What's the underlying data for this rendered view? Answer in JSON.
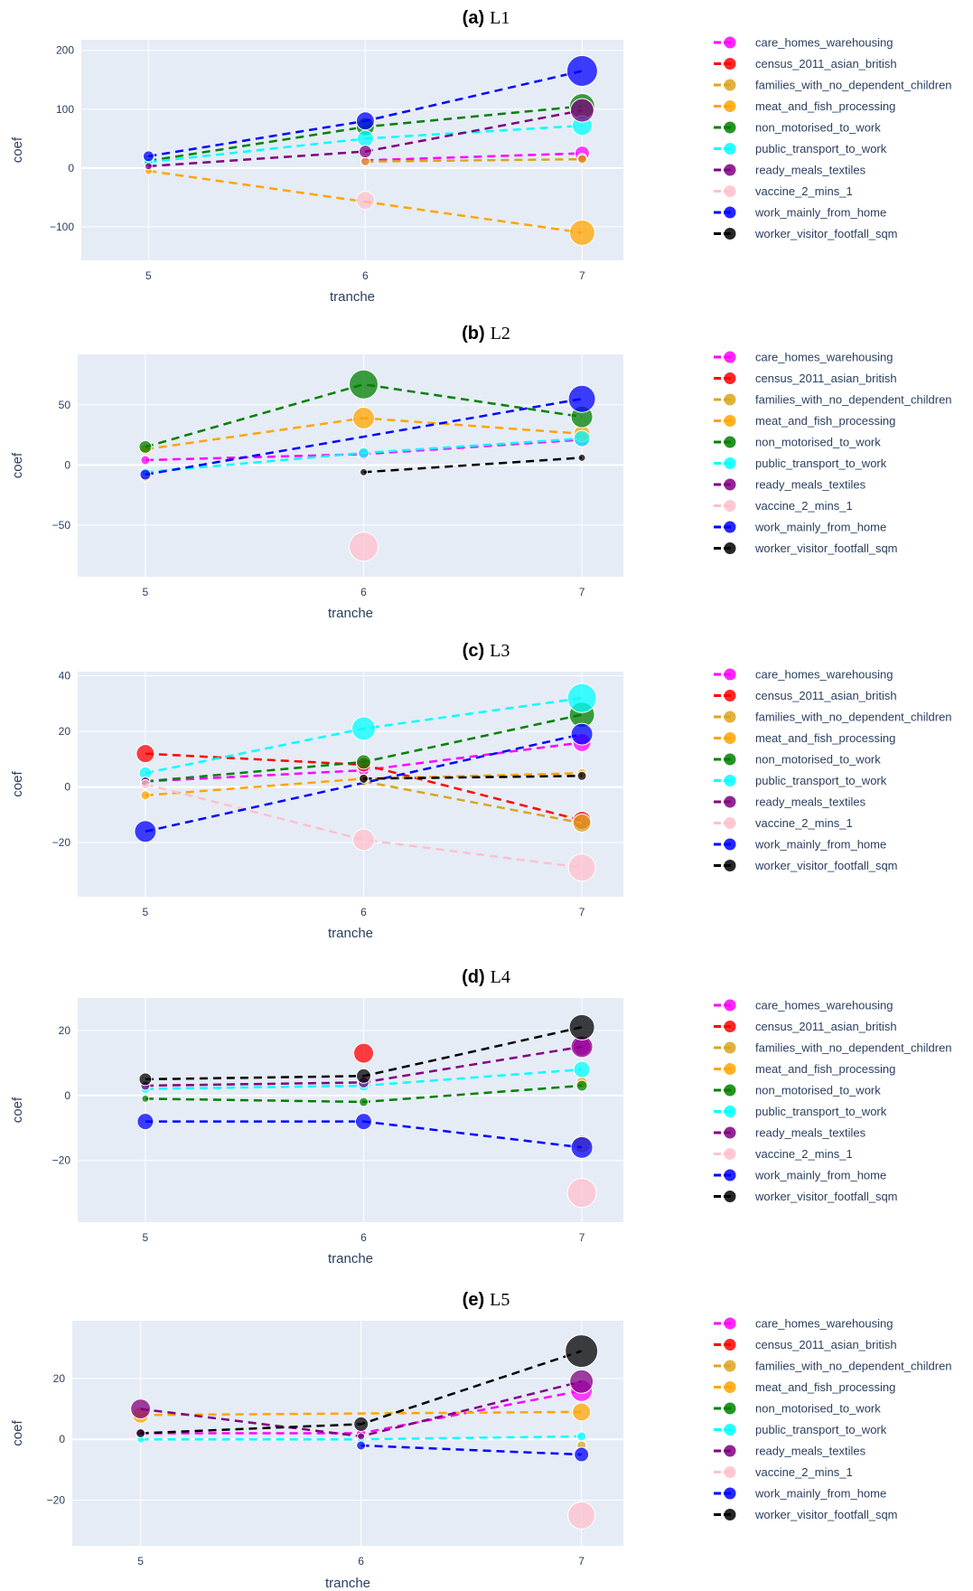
{
  "colors": {
    "plot_bg": "#e5ecf6",
    "grid": "#ffffff",
    "tick_text": "#2a3f5f"
  },
  "chart_data": [
    {
      "type": "scatter",
      "title_label": "(a)",
      "title_text": "L1",
      "xlabel": "tranche",
      "ylabel": "coef",
      "x_ticks": [
        5,
        6,
        7
      ],
      "y_ticks": [
        -100,
        0,
        100,
        200
      ],
      "xlim": [
        4.69,
        7.19
      ],
      "ylim": [
        -157,
        218
      ],
      "series": [
        {
          "name": "care_homes_warehousing",
          "color": "#ff00ff",
          "points": [
            {
              "x": 6,
              "y": 13,
              "size": 5
            },
            {
              "x": 7,
              "y": 25,
              "size": 8
            }
          ]
        },
        {
          "name": "census_2011_asian_british",
          "color": "#ff0000",
          "points": [
            {
              "x": 7,
              "y": 17,
              "size": 5
            }
          ]
        },
        {
          "name": "families_with_no_dependent_children",
          "color": "#daa520",
          "points": [
            {
              "x": 6,
              "y": 11,
              "size": 5
            },
            {
              "x": 7,
              "y": 15,
              "size": 5
            }
          ]
        },
        {
          "name": "meat_and_fish_processing",
          "color": "#ffa500",
          "points": [
            {
              "x": 5,
              "y": -5,
              "size": 4
            },
            {
              "x": 7,
              "y": -110,
              "size": 14
            }
          ]
        },
        {
          "name": "non_motorised_to_work",
          "color": "#008000",
          "points": [
            {
              "x": 5,
              "y": 12,
              "size": 6
            },
            {
              "x": 6,
              "y": 70,
              "size": 10
            },
            {
              "x": 7,
              "y": 105,
              "size": 14
            }
          ]
        },
        {
          "name": "public_transport_to_work",
          "color": "#00ffff",
          "points": [
            {
              "x": 5,
              "y": 10,
              "size": 5
            },
            {
              "x": 6,
              "y": 50,
              "size": 9
            },
            {
              "x": 7,
              "y": 72,
              "size": 11
            }
          ]
        },
        {
          "name": "ready_meals_textiles",
          "color": "#800080",
          "points": [
            {
              "x": 5,
              "y": 3,
              "size": 4
            },
            {
              "x": 6,
              "y": 28,
              "size": 7
            },
            {
              "x": 7,
              "y": 98,
              "size": 13
            }
          ]
        },
        {
          "name": "vaccine_2_mins_1",
          "color": "#ffc0cb",
          "points": [
            {
              "x": 6,
              "y": -55,
              "size": 10
            }
          ]
        },
        {
          "name": "work_mainly_from_home",
          "color": "#0000ff",
          "points": [
            {
              "x": 5,
              "y": 20,
              "size": 6
            },
            {
              "x": 6,
              "y": 80,
              "size": 10
            },
            {
              "x": 7,
              "y": 165,
              "size": 17
            }
          ]
        },
        {
          "name": "worker_visitor_footfall_sqm",
          "color": "#000000",
          "points": []
        }
      ]
    },
    {
      "type": "scatter",
      "title_label": "(b)",
      "title_text": "L2",
      "xlabel": "tranche",
      "ylabel": "coef",
      "x_ticks": [
        5,
        6,
        7
      ],
      "y_ticks": [
        -50,
        0,
        50
      ],
      "xlim": [
        4.69,
        7.19
      ],
      "ylim": [
        -93,
        92
      ],
      "series": [
        {
          "name": "care_homes_warehousing",
          "color": "#ff00ff",
          "points": [
            {
              "x": 5,
              "y": 4,
              "size": 5
            },
            {
              "x": 6,
              "y": 9,
              "size": 6
            },
            {
              "x": 7,
              "y": 21,
              "size": 8
            }
          ]
        },
        {
          "name": "census_2011_asian_british",
          "color": "#ff0000",
          "points": []
        },
        {
          "name": "families_with_no_dependent_children",
          "color": "#daa520",
          "points": [
            {
              "x": 5,
              "y": -10,
              "size": 5
            }
          ]
        },
        {
          "name": "meat_and_fish_processing",
          "color": "#ffa500",
          "points": [
            {
              "x": 5,
              "y": 13,
              "size": 6
            },
            {
              "x": 6,
              "y": 39,
              "size": 12
            },
            {
              "x": 7,
              "y": 26,
              "size": 9
            }
          ]
        },
        {
          "name": "non_motorised_to_work",
          "color": "#008000",
          "points": [
            {
              "x": 5,
              "y": 15,
              "size": 7
            },
            {
              "x": 6,
              "y": 67,
              "size": 16
            },
            {
              "x": 7,
              "y": 40,
              "size": 12
            }
          ]
        },
        {
          "name": "public_transport_to_work",
          "color": "#00ffff",
          "points": [
            {
              "x": 5,
              "y": -6,
              "size": 5
            },
            {
              "x": 6,
              "y": 10,
              "size": 6
            },
            {
              "x": 7,
              "y": 22,
              "size": 9
            }
          ]
        },
        {
          "name": "ready_meals_textiles",
          "color": "#800080",
          "points": []
        },
        {
          "name": "vaccine_2_mins_1",
          "color": "#ffc0cb",
          "points": [
            {
              "x": 6,
              "y": -68,
              "size": 16
            }
          ]
        },
        {
          "name": "work_mainly_from_home",
          "color": "#0000ff",
          "points": [
            {
              "x": 5,
              "y": -8,
              "size": 6
            },
            {
              "x": 7,
              "y": 55,
              "size": 15
            }
          ]
        },
        {
          "name": "worker_visitor_footfall_sqm",
          "color": "#000000",
          "points": [
            {
              "x": 6,
              "y": -6,
              "size": 4
            },
            {
              "x": 7,
              "y": 6,
              "size": 4
            }
          ]
        }
      ]
    },
    {
      "type": "scatter",
      "title_label": "(c)",
      "title_text": "L3",
      "xlabel": "tranche",
      "ylabel": "coef",
      "x_ticks": [
        5,
        6,
        7
      ],
      "y_ticks": [
        -20,
        0,
        20,
        40
      ],
      "xlim": [
        4.69,
        7.19
      ],
      "ylim": [
        -39.5,
        41.5
      ],
      "series": [
        {
          "name": "care_homes_warehousing",
          "color": "#ff00ff",
          "points": [
            {
              "x": 5,
              "y": 2,
              "size": 5
            },
            {
              "x": 6,
              "y": 6,
              "size": 6
            },
            {
              "x": 7,
              "y": 16,
              "size": 10
            }
          ]
        },
        {
          "name": "census_2011_asian_british",
          "color": "#ff0000",
          "points": [
            {
              "x": 5,
              "y": 12,
              "size": 10
            },
            {
              "x": 6,
              "y": 8,
              "size": 8
            },
            {
              "x": 7,
              "y": -12,
              "size": 10
            }
          ]
        },
        {
          "name": "families_with_no_dependent_children",
          "color": "#daa520",
          "points": [
            {
              "x": 6,
              "y": 2,
              "size": 5
            },
            {
              "x": 7,
              "y": -13,
              "size": 10
            }
          ]
        },
        {
          "name": "meat_and_fish_processing",
          "color": "#ffa500",
          "points": [
            {
              "x": 5,
              "y": -3,
              "size": 5
            },
            {
              "x": 6,
              "y": 3,
              "size": 5
            },
            {
              "x": 7,
              "y": 5,
              "size": 5
            }
          ]
        },
        {
          "name": "non_motorised_to_work",
          "color": "#008000",
          "points": [
            {
              "x": 5,
              "y": 2,
              "size": 5
            },
            {
              "x": 6,
              "y": 9,
              "size": 8
            },
            {
              "x": 7,
              "y": 26,
              "size": 14
            }
          ]
        },
        {
          "name": "public_transport_to_work",
          "color": "#00ffff",
          "points": [
            {
              "x": 5,
              "y": 5,
              "size": 7
            },
            {
              "x": 6,
              "y": 21,
              "size": 13
            },
            {
              "x": 7,
              "y": 32,
              "size": 16
            }
          ]
        },
        {
          "name": "ready_meals_textiles",
          "color": "#800080",
          "points": [
            {
              "x": 5,
              "y": 2,
              "size": 5
            }
          ]
        },
        {
          "name": "vaccine_2_mins_1",
          "color": "#ffc0cb",
          "points": [
            {
              "x": 5,
              "y": 1,
              "size": 5
            },
            {
              "x": 6,
              "y": -19,
              "size": 12
            },
            {
              "x": 7,
              "y": -29,
              "size": 15
            }
          ]
        },
        {
          "name": "work_mainly_from_home",
          "color": "#0000ff",
          "points": [
            {
              "x": 5,
              "y": -16,
              "size": 12
            },
            {
              "x": 7,
              "y": 19,
              "size": 12
            }
          ]
        },
        {
          "name": "worker_visitor_footfall_sqm",
          "color": "#000000",
          "points": [
            {
              "x": 6,
              "y": 3,
              "size": 5
            },
            {
              "x": 7,
              "y": 4,
              "size": 5
            }
          ]
        }
      ]
    },
    {
      "type": "scatter",
      "title_label": "(d)",
      "title_text": "L4",
      "xlabel": "tranche",
      "ylabel": "coef",
      "x_ticks": [
        5,
        6,
        7
      ],
      "y_ticks": [
        -20,
        0,
        20
      ],
      "xlim": [
        4.69,
        7.19
      ],
      "ylim": [
        -39,
        30
      ],
      "series": [
        {
          "name": "care_homes_warehousing",
          "color": "#ff00ff",
          "points": [
            {
              "x": 7,
              "y": 15,
              "size": 10
            }
          ]
        },
        {
          "name": "census_2011_asian_british",
          "color": "#ff0000",
          "points": [
            {
              "x": 6,
              "y": 13,
              "size": 11
            }
          ]
        },
        {
          "name": "families_with_no_dependent_children",
          "color": "#daa520",
          "points": [
            {
              "x": 7,
              "y": -15,
              "size": 10
            }
          ]
        },
        {
          "name": "meat_and_fish_processing",
          "color": "#ffa500",
          "points": [
            {
              "x": 7,
              "y": 4,
              "size": 6
            }
          ]
        },
        {
          "name": "non_motorised_to_work",
          "color": "#008000",
          "points": [
            {
              "x": 5,
              "y": -1,
              "size": 4
            },
            {
              "x": 6,
              "y": -2,
              "size": 5
            },
            {
              "x": 7,
              "y": 3,
              "size": 6
            }
          ]
        },
        {
          "name": "public_transport_to_work",
          "color": "#00ffff",
          "points": [
            {
              "x": 5,
              "y": 2,
              "size": 5
            },
            {
              "x": 6,
              "y": 3,
              "size": 6
            },
            {
              "x": 7,
              "y": 8,
              "size": 9
            }
          ]
        },
        {
          "name": "ready_meals_textiles",
          "color": "#800080",
          "points": [
            {
              "x": 5,
              "y": 3,
              "size": 5
            },
            {
              "x": 6,
              "y": 4,
              "size": 6
            },
            {
              "x": 7,
              "y": 15,
              "size": 12
            }
          ]
        },
        {
          "name": "vaccine_2_mins_1",
          "color": "#ffc0cb",
          "points": [
            {
              "x": 7,
              "y": -30,
              "size": 16
            }
          ]
        },
        {
          "name": "work_mainly_from_home",
          "color": "#0000ff",
          "points": [
            {
              "x": 5,
              "y": -8,
              "size": 9
            },
            {
              "x": 6,
              "y": -8,
              "size": 9
            },
            {
              "x": 7,
              "y": -16,
              "size": 12
            }
          ]
        },
        {
          "name": "worker_visitor_footfall_sqm",
          "color": "#000000",
          "points": [
            {
              "x": 5,
              "y": 5,
              "size": 7
            },
            {
              "x": 6,
              "y": 6,
              "size": 8
            },
            {
              "x": 7,
              "y": 21,
              "size": 14
            }
          ]
        }
      ]
    },
    {
      "type": "scatter",
      "title_label": "(e)",
      "title_text": "L5",
      "xlabel": "tranche",
      "ylabel": "coef",
      "x_ticks": [
        5,
        6,
        7
      ],
      "y_ticks": [
        -20,
        0,
        20
      ],
      "xlim": [
        4.69,
        7.19
      ],
      "ylim": [
        -35,
        39
      ],
      "series": [
        {
          "name": "care_homes_warehousing",
          "color": "#ff00ff",
          "points": [
            {
              "x": 5,
              "y": 2,
              "size": 5
            },
            {
              "x": 6,
              "y": 2,
              "size": 5
            },
            {
              "x": 7,
              "y": 16,
              "size": 12
            }
          ]
        },
        {
          "name": "census_2011_asian_british",
          "color": "#ff0000",
          "points": []
        },
        {
          "name": "families_with_no_dependent_children",
          "color": "#daa520",
          "points": [
            {
              "x": 7,
              "y": -2,
              "size": 5
            }
          ]
        },
        {
          "name": "meat_and_fish_processing",
          "color": "#ffa500",
          "points": [
            {
              "x": 5,
              "y": 8,
              "size": 9
            },
            {
              "x": 7,
              "y": 9,
              "size": 10
            }
          ]
        },
        {
          "name": "non_motorised_to_work",
          "color": "#008000",
          "points": []
        },
        {
          "name": "public_transport_to_work",
          "color": "#00ffff",
          "points": [
            {
              "x": 5,
              "y": 0,
              "size": 4
            },
            {
              "x": 6,
              "y": 0,
              "size": 4
            },
            {
              "x": 7,
              "y": 1,
              "size": 5
            }
          ]
        },
        {
          "name": "ready_meals_textiles",
          "color": "#800080",
          "points": [
            {
              "x": 5,
              "y": 10,
              "size": 11
            },
            {
              "x": 6,
              "y": 1,
              "size": 4
            },
            {
              "x": 7,
              "y": 19,
              "size": 13
            }
          ]
        },
        {
          "name": "vaccine_2_mins_1",
          "color": "#ffc0cb",
          "points": [
            {
              "x": 7,
              "y": -25,
              "size": 15
            }
          ]
        },
        {
          "name": "work_mainly_from_home",
          "color": "#0000ff",
          "points": [
            {
              "x": 6,
              "y": -2,
              "size": 5
            },
            {
              "x": 7,
              "y": -5,
              "size": 8
            }
          ]
        },
        {
          "name": "worker_visitor_footfall_sqm",
          "color": "#000000",
          "points": [
            {
              "x": 5,
              "y": 2,
              "size": 5
            },
            {
              "x": 6,
              "y": 5,
              "size": 8
            },
            {
              "x": 7,
              "y": 29,
              "size": 18
            }
          ]
        }
      ]
    }
  ]
}
